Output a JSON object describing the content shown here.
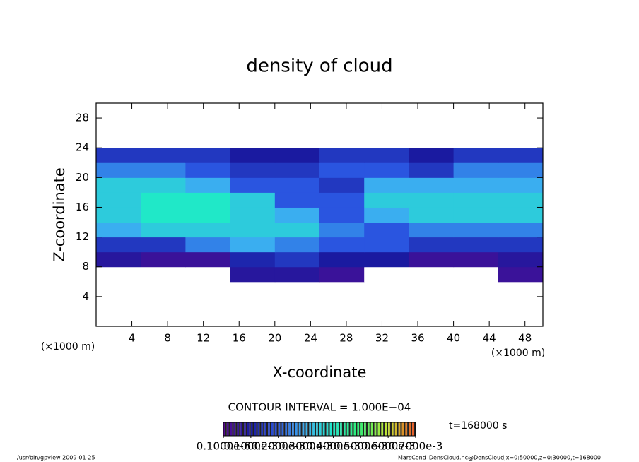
{
  "chart_data": {
    "type": "heatmap",
    "title": "density of cloud",
    "x_label": "X-coordinate",
    "y_label": "Z-coordinate",
    "x_unit": "(×1000 m)",
    "y_unit": "(×1000 m)",
    "xlim": [
      0,
      50
    ],
    "ylim": [
      0,
      30
    ],
    "xticks": [
      4,
      8,
      12,
      16,
      20,
      24,
      28,
      32,
      36,
      40,
      44,
      48
    ],
    "yticks": [
      4,
      8,
      12,
      16,
      20,
      24,
      28
    ],
    "x_edges": [
      0,
      5,
      10,
      15,
      20,
      25,
      30,
      35,
      40,
      45,
      50
    ],
    "y_edges": [
      6,
      8,
      10,
      12,
      14,
      16,
      18,
      20,
      22,
      24
    ],
    "values": [
      [
        0,
        0,
        0,
        8e-05,
        8e-05,
        5e-05,
        0,
        0,
        0,
        5e-05
      ],
      [
        8e-05,
        5e-05,
        5e-05,
        0.00012,
        0.00015,
        0.0001,
        0.0001,
        5e-05,
        5e-05,
        8e-05
      ],
      [
        0.00015,
        0.00015,
        0.00025,
        0.0003,
        0.00025,
        0.0002,
        0.0002,
        0.00015,
        0.00015,
        0.00015
      ],
      [
        0.0003,
        0.00035,
        0.00035,
        0.00035,
        0.00035,
        0.00025,
        0.0002,
        0.00025,
        0.00025,
        0.00025
      ],
      [
        0.00035,
        0.0004,
        0.0004,
        0.00035,
        0.0003,
        0.0002,
        0.0003,
        0.00035,
        0.00035,
        0.00035
      ],
      [
        0.00035,
        0.0004,
        0.0004,
        0.00035,
        0.0002,
        0.0002,
        0.00035,
        0.00035,
        0.00035,
        0.00035
      ],
      [
        0.00035,
        0.00035,
        0.0003,
        0.0002,
        0.0002,
        0.00015,
        0.0003,
        0.0003,
        0.0003,
        0.0003
      ],
      [
        0.00025,
        0.00025,
        0.0002,
        0.00015,
        0.00015,
        0.0002,
        0.0002,
        0.00015,
        0.00025,
        0.00025
      ],
      [
        0.00015,
        0.00015,
        0.00015,
        0.0001,
        0.0001,
        0.00015,
        0.00015,
        0.0001,
        0.00015,
        0.00015
      ]
    ],
    "colormap": [
      "#5b0a91",
      "#1a1aa0",
      "#2a55e0",
      "#3aaef0",
      "#20e8c8",
      "#30f070",
      "#c8e830",
      "#e85020"
    ],
    "colorbar_lim": [
      0,
      0.0007
    ],
    "colorbar_ticks": [
      {
        "value": 1e-07,
        "label": "0.1000e-6"
      },
      {
        "value": 0.0001,
        "label": "0.1000e-3"
      },
      {
        "value": 0.0002,
        "label": "0.2000e-3"
      },
      {
        "value": 0.0003,
        "label": "0.3000e-3"
      },
      {
        "value": 0.0004,
        "label": "0.4000e-3"
      },
      {
        "value": 0.0005,
        "label": "0.5000e-3"
      },
      {
        "value": 0.0006,
        "label": "0.6000e-3"
      },
      {
        "value": 0.0007,
        "label": "0.7000e-3"
      }
    ],
    "contour_note": "CONTOUR INTERVAL = 1.000E−04",
    "time_label": "t=168000 s",
    "footer_left": "/usr/bin/gpview  2009-01-25",
    "footer_right": "MarsCond_DensCloud.nc@DensCloud,x=0:50000,z=0:30000,t=168000"
  }
}
